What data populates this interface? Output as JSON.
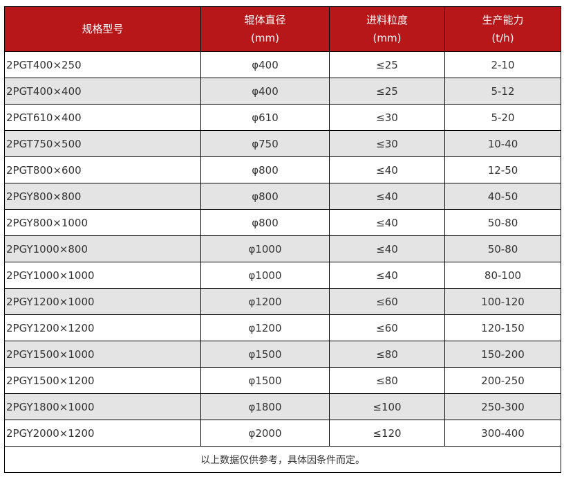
{
  "table": {
    "headers": [
      {
        "line1": "规格型号",
        "line2": ""
      },
      {
        "line1": "辊体直径",
        "line2": "(mm)"
      },
      {
        "line1": "进料粒度",
        "line2": "(mm)"
      },
      {
        "line1": "生产能力",
        "line2": "(t/h)"
      }
    ],
    "rows": [
      [
        "2PGT400×250",
        "φ400",
        "≤25",
        "2-10"
      ],
      [
        "2PGT400×400",
        "φ400",
        "≤25",
        "5-12"
      ],
      [
        "2PGT610×400",
        "φ610",
        "≤30",
        "5-20"
      ],
      [
        "2PGT750×500",
        "φ750",
        "≤30",
        "10-40"
      ],
      [
        "2PGT800×600",
        "φ800",
        "≤40",
        "12-50"
      ],
      [
        "2PGY800×800",
        "φ800",
        "≤40",
        "40-50"
      ],
      [
        "2PGY800×1000",
        "φ800",
        "≤40",
        "50-80"
      ],
      [
        "2PGY1000×800",
        "φ1000",
        "≤40",
        "50-80"
      ],
      [
        "2PGY1000×1000",
        "φ1000",
        "≤40",
        "80-100"
      ],
      [
        "2PGY1200×1000",
        "φ1200",
        "≤60",
        "100-120"
      ],
      [
        "2PGY1200×1200",
        "φ1200",
        "≤60",
        "120-150"
      ],
      [
        "2PGY1500×1000",
        "φ1500",
        "≤80",
        "150-200"
      ],
      [
        "2PGY1500×1200",
        "φ1500",
        "≤80",
        "200-250"
      ],
      [
        "2PGY1800×1000",
        "φ1800",
        "≤100",
        "250-300"
      ],
      [
        "2PGY2000×1200",
        "φ2000",
        "≤120",
        "300-400"
      ]
    ],
    "footnote": "以上数据仅供参考，具体因条件而定。"
  },
  "colors": {
    "header_bg": "#b8171a",
    "alt_row": "#e4e4e4"
  }
}
